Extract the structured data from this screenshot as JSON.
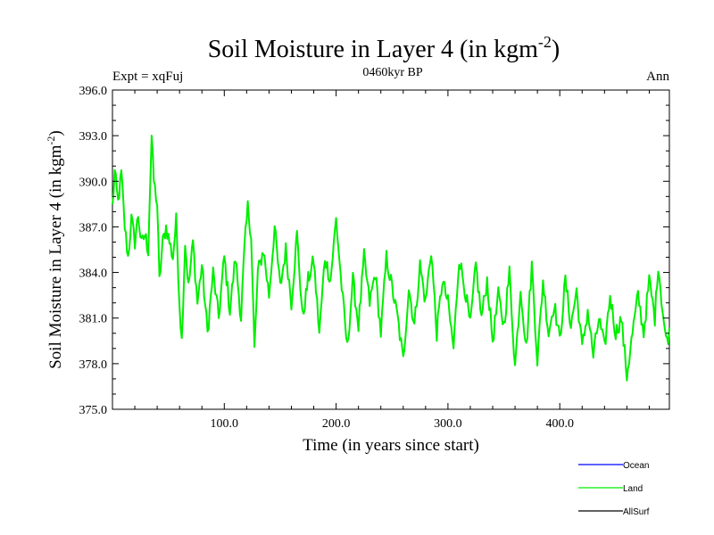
{
  "chart_data": {
    "type": "line",
    "title_main": "Soil Moisture in Layer 4 (in kgm",
    "title_sup": "-2",
    "title_close": ")",
    "subtitle": "0460kyr BP",
    "left_label": "Expt = xqFuj",
    "right_label": "Ann",
    "xlabel": "Time (in years since start)",
    "ylabel_main": "Soil Moisture in Layer 4 (in kgm",
    "ylabel_sup": "-2",
    "ylabel_close": ")",
    "xlim": [
      0,
      498
    ],
    "ylim": [
      375,
      396
    ],
    "xticks": [
      100,
      200,
      300,
      400
    ],
    "xtick_labels": [
      "100.0",
      "200.0",
      "300.0",
      "400.0"
    ],
    "yticks": [
      375,
      378,
      381,
      384,
      387,
      390,
      393,
      396
    ],
    "ytick_labels": [
      "375.0",
      "378.0",
      "381.0",
      "384.0",
      "387.0",
      "390.0",
      "393.0",
      "396.0"
    ],
    "series": [
      {
        "name": "Land",
        "color": "#00ee00",
        "anchors": [
          [
            0,
            388.3
          ],
          [
            2,
            390.6
          ],
          [
            5,
            388.6
          ],
          [
            8,
            390.5
          ],
          [
            11,
            387.0
          ],
          [
            14,
            385.0
          ],
          [
            17,
            387.5
          ],
          [
            20,
            386.0
          ],
          [
            23,
            387.8
          ],
          [
            26,
            385.8
          ],
          [
            29,
            386.5
          ],
          [
            32,
            385.5
          ],
          [
            35,
            393.0
          ],
          [
            37,
            390.0
          ],
          [
            40,
            388.5
          ],
          [
            42,
            383.4
          ],
          [
            45,
            386.0
          ],
          [
            48,
            387.0
          ],
          [
            51,
            386.0
          ],
          [
            54,
            385.0
          ],
          [
            57,
            387.4
          ],
          [
            60,
            382.0
          ],
          [
            62,
            379.5
          ],
          [
            65,
            386.0
          ],
          [
            68,
            383.0
          ],
          [
            72,
            386.0
          ],
          [
            76,
            382.0
          ],
          [
            80,
            384.5
          ],
          [
            85,
            380.0
          ],
          [
            90,
            384.0
          ],
          [
            95,
            381.0
          ],
          [
            100,
            385.0
          ],
          [
            105,
            381.5
          ],
          [
            110,
            385.0
          ],
          [
            115,
            381.0
          ],
          [
            118,
            385.5
          ],
          [
            121,
            388.3
          ],
          [
            124,
            386.5
          ],
          [
            127,
            378.9
          ],
          [
            130,
            384.0
          ],
          [
            135,
            385.5
          ],
          [
            140,
            382.5
          ],
          [
            145,
            387.0
          ],
          [
            150,
            383.0
          ],
          [
            155,
            385.5
          ],
          [
            160,
            382.0
          ],
          [
            165,
            386.5
          ],
          [
            170,
            381.0
          ],
          [
            175,
            383.5
          ],
          [
            180,
            384.8
          ],
          [
            185,
            380.0
          ],
          [
            190,
            385.0
          ],
          [
            195,
            383.5
          ],
          [
            200,
            387.5
          ],
          [
            205,
            383.0
          ],
          [
            210,
            379.0
          ],
          [
            215,
            383.5
          ],
          [
            220,
            380.5
          ],
          [
            225,
            385.0
          ],
          [
            230,
            382.0
          ],
          [
            235,
            384.0
          ],
          [
            240,
            380.0
          ],
          [
            245,
            385.0
          ],
          [
            250,
            383.0
          ],
          [
            255,
            381.0
          ],
          [
            260,
            378.2
          ],
          [
            265,
            383.0
          ],
          [
            270,
            380.5
          ],
          [
            275,
            384.5
          ],
          [
            280,
            382.0
          ],
          [
            285,
            385.5
          ],
          [
            290,
            380.0
          ],
          [
            295,
            383.5
          ],
          [
            300,
            382.0
          ],
          [
            305,
            379.0
          ],
          [
            310,
            385.0
          ],
          [
            315,
            383.0
          ],
          [
            320,
            380.5
          ],
          [
            325,
            384.5
          ],
          [
            330,
            381.0
          ],
          [
            335,
            383.5
          ],
          [
            340,
            379.5
          ],
          [
            345,
            382.5
          ],
          [
            350,
            380.5
          ],
          [
            355,
            384.0
          ],
          [
            360,
            377.8
          ],
          [
            365,
            383.0
          ],
          [
            370,
            379.0
          ],
          [
            375,
            384.5
          ],
          [
            380,
            378.2
          ],
          [
            385,
            383.5
          ],
          [
            390,
            380.0
          ],
          [
            395,
            382.0
          ],
          [
            400,
            379.5
          ],
          [
            405,
            383.5
          ],
          [
            410,
            380.5
          ],
          [
            415,
            382.8
          ],
          [
            420,
            379.0
          ],
          [
            425,
            381.5
          ],
          [
            430,
            378.5
          ],
          [
            435,
            381.0
          ],
          [
            440,
            379.0
          ],
          [
            445,
            382.5
          ],
          [
            450,
            380.0
          ],
          [
            455,
            381.0
          ],
          [
            460,
            377.2
          ],
          [
            465,
            380.0
          ],
          [
            470,
            382.5
          ],
          [
            475,
            380.0
          ],
          [
            480,
            383.5
          ],
          [
            485,
            381.0
          ],
          [
            488,
            384.6
          ],
          [
            492,
            381.5
          ],
          [
            495,
            379.5
          ],
          [
            498,
            380.0
          ]
        ]
      }
    ],
    "legend": [
      {
        "label": "Ocean",
        "color": "#0000ff"
      },
      {
        "label": "Land",
        "color": "#00ee00"
      },
      {
        "label": "AllSurf",
        "color": "#000000"
      }
    ]
  }
}
